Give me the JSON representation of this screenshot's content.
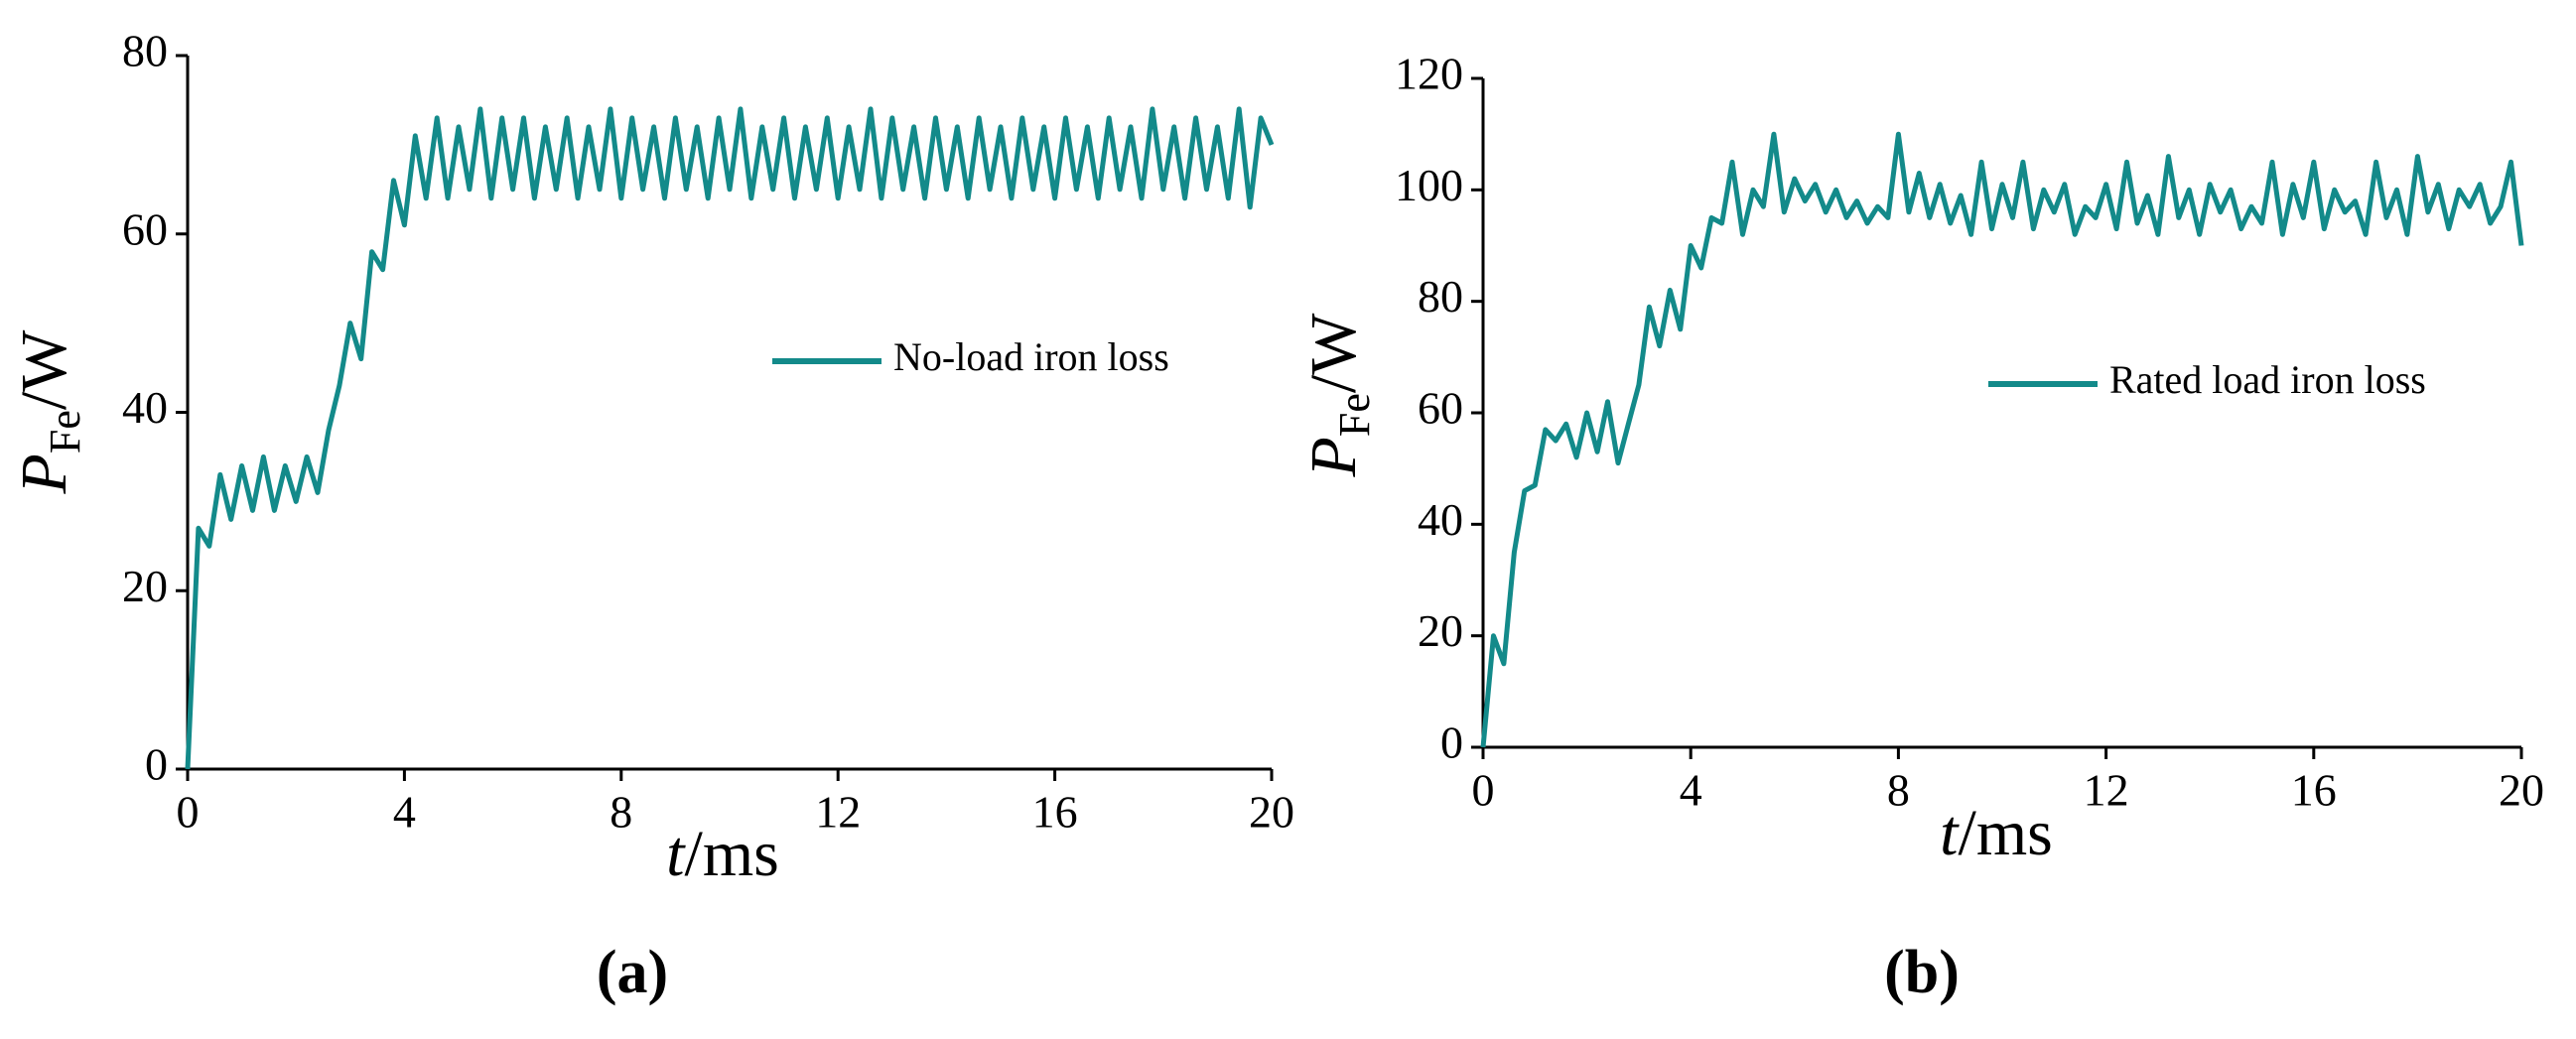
{
  "chart_data": [
    {
      "type": "line",
      "panel_label": "(a)",
      "xlabel": {
        "symbol": "t",
        "unit": "/ms"
      },
      "ylabel": {
        "symbol": "P",
        "subscript": "Fe",
        "unit": "/W"
      },
      "xlim": [
        0,
        20
      ],
      "xticks": [
        0,
        4,
        8,
        12,
        16,
        20
      ],
      "ylim": [
        0,
        80
      ],
      "yticks": [
        0,
        20,
        40,
        60,
        80
      ],
      "x": [
        0,
        0.2,
        0.4,
        0.6,
        0.8,
        1,
        1.2,
        1.4,
        1.6,
        1.8,
        2,
        2.2,
        2.4,
        2.6,
        2.8,
        3,
        3.2,
        3.4,
        3.6,
        3.8,
        4,
        4.2,
        4.4,
        4.6,
        4.8,
        5,
        5.2,
        5.4,
        5.6,
        5.8,
        6,
        6.2,
        6.4,
        6.6,
        6.8,
        7,
        7.2,
        7.4,
        7.6,
        7.8,
        8,
        8.2,
        8.4,
        8.6,
        8.8,
        9,
        9.2,
        9.4,
        9.6,
        9.8,
        10,
        10.2,
        10.4,
        10.6,
        10.8,
        11,
        11.2,
        11.4,
        11.6,
        11.8,
        12,
        12.2,
        12.4,
        12.6,
        12.8,
        13,
        13.2,
        13.4,
        13.6,
        13.8,
        14,
        14.2,
        14.4,
        14.6,
        14.8,
        15,
        15.2,
        15.4,
        15.6,
        15.8,
        16,
        16.2,
        16.4,
        16.6,
        16.8,
        17,
        17.2,
        17.4,
        17.6,
        17.8,
        18,
        18.2,
        18.4,
        18.6,
        18.8,
        19,
        19.2,
        19.4,
        19.6,
        19.8,
        20
      ],
      "series": [
        {
          "name": "No-load  iron loss",
          "color": "#138a8a",
          "values": [
            0,
            27,
            25,
            33,
            28,
            34,
            29,
            35,
            29,
            34,
            30,
            35,
            31,
            38,
            43,
            50,
            46,
            58,
            56,
            66,
            61,
            71,
            64,
            73,
            64,
            72,
            65,
            74,
            64,
            73,
            65,
            73,
            64,
            72,
            65,
            73,
            64,
            72,
            65,
            74,
            64,
            73,
            65,
            72,
            64,
            73,
            65,
            72,
            64,
            73,
            65,
            74,
            64,
            72,
            65,
            73,
            64,
            72,
            65,
            73,
            64,
            72,
            65,
            74,
            64,
            73,
            65,
            72,
            64,
            73,
            65,
            72,
            64,
            73,
            65,
            72,
            64,
            73,
            65,
            72,
            64,
            73,
            65,
            72,
            64,
            73,
            65,
            72,
            64,
            74,
            65,
            72,
            64,
            73,
            65,
            72,
            64,
            74,
            63,
            73,
            70
          ]
        }
      ]
    },
    {
      "type": "line",
      "panel_label": "(b)",
      "xlabel": {
        "symbol": "t",
        "unit": "/ms"
      },
      "ylabel": {
        "symbol": "P",
        "subscript": "Fe",
        "unit": "/W"
      },
      "xlim": [
        0,
        20
      ],
      "xticks": [
        0,
        4,
        8,
        12,
        16,
        20
      ],
      "ylim": [
        0,
        120
      ],
      "yticks": [
        0,
        20,
        40,
        60,
        80,
        100,
        120
      ],
      "x": [
        0,
        0.2,
        0.4,
        0.6,
        0.8,
        1,
        1.2,
        1.4,
        1.6,
        1.8,
        2,
        2.2,
        2.4,
        2.6,
        2.8,
        3,
        3.2,
        3.4,
        3.6,
        3.8,
        4,
        4.2,
        4.4,
        4.6,
        4.8,
        5,
        5.2,
        5.4,
        5.6,
        5.8,
        6,
        6.2,
        6.4,
        6.6,
        6.8,
        7,
        7.2,
        7.4,
        7.6,
        7.8,
        8,
        8.2,
        8.4,
        8.6,
        8.8,
        9,
        9.2,
        9.4,
        9.6,
        9.8,
        10,
        10.2,
        10.4,
        10.6,
        10.8,
        11,
        11.2,
        11.4,
        11.6,
        11.8,
        12,
        12.2,
        12.4,
        12.6,
        12.8,
        13,
        13.2,
        13.4,
        13.6,
        13.8,
        14,
        14.2,
        14.4,
        14.6,
        14.8,
        15,
        15.2,
        15.4,
        15.6,
        15.8,
        16,
        16.2,
        16.4,
        16.6,
        16.8,
        17,
        17.2,
        17.4,
        17.6,
        17.8,
        18,
        18.2,
        18.4,
        18.6,
        18.8,
        19,
        19.2,
        19.4,
        19.6,
        19.8,
        20
      ],
      "series": [
        {
          "name": "Rated load iron loss",
          "color": "#138a8a",
          "values": [
            0,
            20,
            15,
            35,
            46,
            47,
            57,
            55,
            58,
            52,
            60,
            53,
            62,
            51,
            58,
            65,
            79,
            72,
            82,
            75,
            90,
            86,
            95,
            94,
            105,
            92,
            100,
            97,
            110,
            96,
            102,
            98,
            101,
            96,
            100,
            95,
            98,
            94,
            97,
            95,
            110,
            96,
            103,
            95,
            101,
            94,
            99,
            92,
            105,
            93,
            101,
            95,
            105,
            93,
            100,
            96,
            101,
            92,
            97,
            95,
            101,
            93,
            105,
            94,
            99,
            92,
            106,
            95,
            100,
            92,
            101,
            96,
            100,
            93,
            97,
            94,
            105,
            92,
            101,
            95,
            105,
            93,
            100,
            96,
            98,
            92,
            105,
            95,
            100,
            92,
            106,
            96,
            101,
            93,
            100,
            97,
            101,
            94,
            97,
            105,
            90
          ]
        }
      ]
    }
  ]
}
